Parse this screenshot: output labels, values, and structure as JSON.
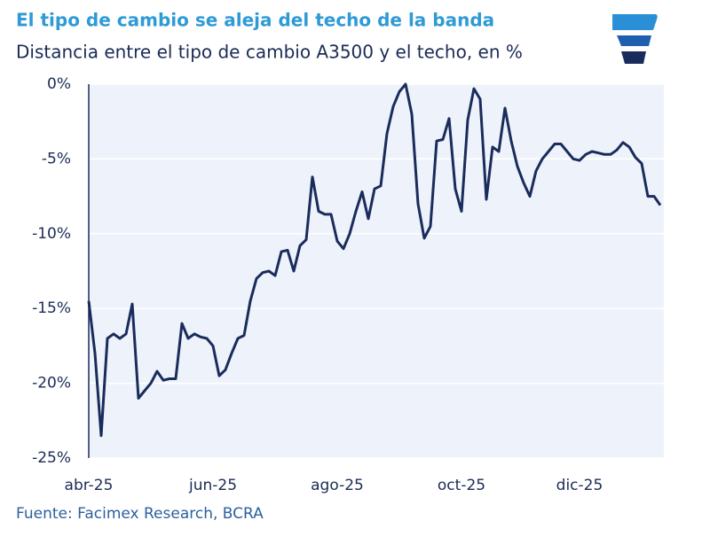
{
  "chart_data": {
    "type": "line",
    "title": "El tipo de cambio se aleja del techo de la banda",
    "subtitle": "Distancia entre el tipo de cambio A3500 y el techo, en %",
    "source": "Fuente: Facimex Research, BCRA",
    "categories": [
      "abr-25",
      null,
      null,
      null,
      null,
      null,
      null,
      null,
      null,
      null,
      null,
      null,
      null,
      null,
      null,
      null,
      null,
      null,
      null,
      null,
      "jun-25",
      null,
      null,
      null,
      null,
      null,
      null,
      null,
      null,
      null,
      null,
      null,
      null,
      null,
      null,
      null,
      null,
      null,
      null,
      null,
      "ago-25",
      null,
      null,
      null,
      null,
      null,
      null,
      null,
      null,
      null,
      null,
      null,
      null,
      null,
      null,
      null,
      null,
      null,
      null,
      null,
      "oct-25",
      null,
      null,
      null,
      null,
      null,
      null,
      null,
      null,
      null,
      null,
      null,
      null,
      null,
      null,
      null,
      null,
      null,
      null,
      "dic-25",
      null,
      null,
      null,
      null,
      null,
      null,
      null,
      null,
      null,
      null,
      null,
      null,
      null
    ],
    "series": [
      {
        "color": "#1a2c5c",
        "values": [
          -14.5,
          -18,
          -23.5,
          -17,
          -16.7,
          -17,
          -16.7,
          -14.7,
          -21,
          -20.5,
          -20,
          -19.2,
          -19.8,
          -19.7,
          -19.7,
          -16,
          -17,
          -16.7,
          -16.9,
          -17,
          -17.5,
          -19.5,
          -19.1,
          -18,
          -17,
          -16.8,
          -14.5,
          -13,
          -12.6,
          -12.5,
          -12.8,
          -11.2,
          -11.1,
          -12.5,
          -10.8,
          -10.4,
          -6.2,
          -8.5,
          -8.7,
          -8.7,
          -10.5,
          -11,
          -10,
          -8.5,
          -7.2,
          -9,
          -7,
          -6.8,
          -3.3,
          -1.5,
          -0.5,
          0,
          -2,
          -8,
          -10.3,
          -9.5,
          -3.8,
          -3.7,
          -2.3,
          -7,
          -8.5,
          -2.4,
          -0.3,
          -1,
          -7.7,
          -4.2,
          -4.5,
          -1.6,
          -3.8,
          -5.5,
          -6.6,
          -7.5,
          -5.8,
          -5,
          -4.5,
          -4,
          -4,
          -4.5,
          -5,
          -5.1,
          -4.7,
          -4.5,
          -4.6,
          -4.7,
          -4.7,
          -4.4,
          -3.9,
          -4.2,
          -4.9,
          -5.3,
          -7.5,
          -7.5,
          -8.1
        ]
      }
    ],
    "ylim": [
      -25,
      0
    ],
    "yticks": [
      {
        "value": -25,
        "label": "-25%"
      },
      {
        "value": -20,
        "label": "-20%"
      },
      {
        "value": -15,
        "label": "-15%"
      },
      {
        "value": -10,
        "label": "-10%"
      },
      {
        "value": -5,
        "label": "-5%"
      },
      {
        "value": 0,
        "label": "0%"
      }
    ],
    "grid": true
  }
}
